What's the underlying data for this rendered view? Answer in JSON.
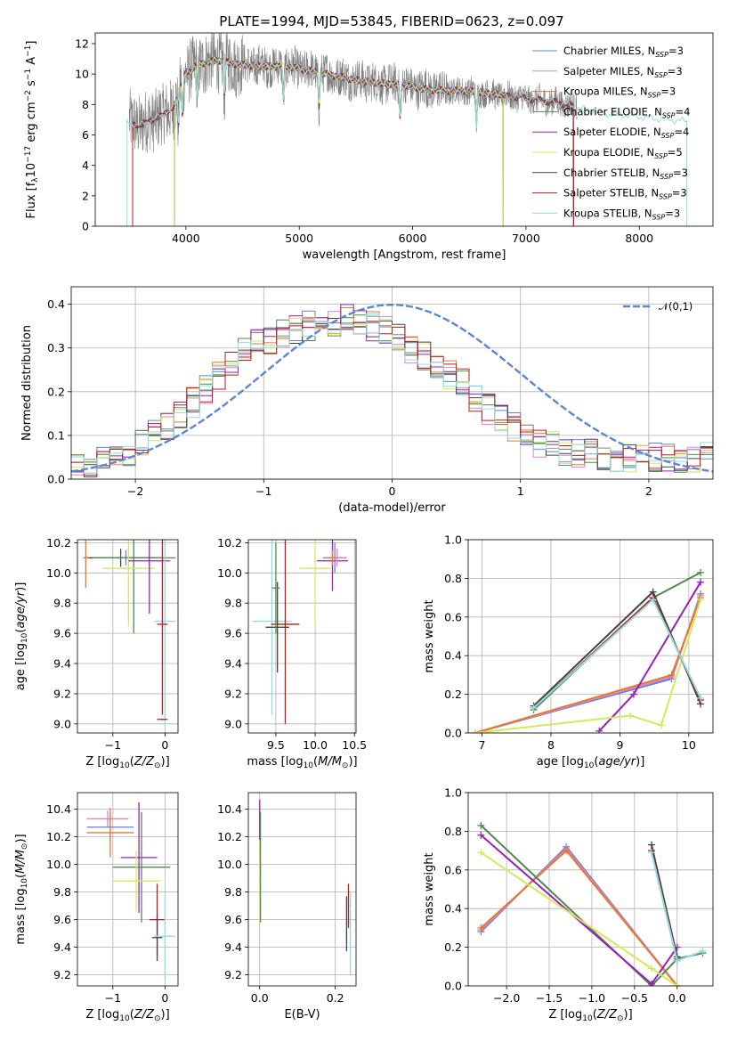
{
  "figure": {
    "title": "PLATE=1994, MJD=53845, FIBERID=0623, z=0.097"
  },
  "series_names": [
    "Chabrier MILES, N_SSP=3",
    "Salpeter MILES, N_SSP=3",
    "Kroupa MILES, N_SSP=3",
    "Chabrier ELODIE, N_SSP=4",
    "Salpeter ELODIE, N_SSP=4",
    "Kroupa ELODIE, N_SSP=5",
    "Chabrier STELIB, N_SSP=3",
    "Salpeter STELIB, N_SSP=3",
    "Kroupa STELIB, N_SSP=3"
  ],
  "series_colors": [
    "#5b86d6",
    "#e381c6",
    "#e8782e",
    "#4f8a4f",
    "#9a1fb8",
    "#d4e85a",
    "#444444",
    "#b81c1c",
    "#8fdde0"
  ],
  "chart_data": [
    {
      "id": "spectrum",
      "type": "line",
      "title": "PLATE=1994, MJD=53845, FIBERID=0623, z=0.097",
      "xlabel": "wavelength [Angstrom, rest frame]",
      "ylabel": "Flux [f_λ 10^-17 erg cm^-2 s^-1 A^-1]",
      "xlim": [
        3200,
        8650
      ],
      "ylim": [
        0,
        12.7
      ],
      "xticks": [
        4000,
        5000,
        6000,
        7000,
        8000
      ],
      "yticks": [
        0,
        2,
        4,
        6,
        8,
        10,
        12
      ],
      "data_color": "#808080",
      "data_range": [
        3500,
        7450
      ],
      "continuum": {
        "x": [
          3460,
          3520,
          3600,
          3700,
          3800,
          3900,
          3960,
          4000,
          4100,
          4200,
          4300,
          4400,
          4500,
          4700,
          4900,
          5100,
          5300,
          5500,
          5700,
          5900,
          6100,
          6300,
          6500,
          6700,
          6900,
          7100,
          7300,
          7500,
          7700,
          7900,
          8100,
          8300,
          8400
        ],
        "y": [
          6.9,
          6.8,
          6.6,
          7.0,
          7.3,
          7.9,
          9.4,
          10.1,
          10.6,
          10.8,
          10.9,
          10.7,
          10.6,
          10.5,
          10.5,
          10.2,
          9.9,
          9.6,
          9.4,
          9.3,
          9.0,
          8.9,
          8.9,
          8.7,
          8.5,
          8.3,
          8.1,
          7.7,
          7.4,
          7.3,
          7.1,
          7.0,
          6.9
        ]
      },
      "absorption_lines": [
        3934,
        3969,
        4102,
        4340,
        4861,
        5175,
        5890,
        6563
      ],
      "model_cutoffs": [
        {
          "series": [
            0,
            1,
            2,
            6,
            7
          ],
          "range": [
            3530,
            7420
          ]
        },
        {
          "series": [
            3,
            4,
            5
          ],
          "range": [
            3900,
            6800
          ]
        },
        {
          "series": [
            8
          ],
          "range": [
            3480,
            8420
          ]
        }
      ],
      "legend": {
        "position": "upper right"
      }
    },
    {
      "id": "residuals",
      "type": "step",
      "xlabel": "(data-model)/error",
      "ylabel": "Normed distribution",
      "xlim": [
        -2.5,
        2.5
      ],
      "ylim": [
        0,
        0.44
      ],
      "xticks": [
        -2,
        -1,
        0,
        1,
        2
      ],
      "yticks": [
        0.0,
        0.1,
        0.2,
        0.3,
        0.4
      ],
      "bin_width": 0.1,
      "grid": true,
      "reference_curve": {
        "name": "𝒩(0,1)",
        "mu": 0,
        "sigma": 1,
        "color": "#5b86d6",
        "dash": true
      },
      "envelope": [
        0.025,
        0.03,
        0.035,
        0.04,
        0.045,
        0.05,
        0.055,
        0.06,
        0.065,
        0.07,
        0.08,
        0.09,
        0.1,
        0.11,
        0.12,
        0.13,
        0.145,
        0.16,
        0.175,
        0.19,
        0.205,
        0.22,
        0.235,
        0.25,
        0.265,
        0.28,
        0.295,
        0.305,
        0.31,
        0.315,
        0.32,
        0.325,
        0.33,
        0.335,
        0.34,
        0.345,
        0.35,
        0.355,
        0.36,
        0.36,
        0.36,
        0.365,
        0.37,
        0.365,
        0.36,
        0.355,
        0.35,
        0.345,
        0.34,
        0.335,
        0.33,
        0.32,
        0.31,
        0.3,
        0.29,
        0.28,
        0.27,
        0.26,
        0.25,
        0.24,
        0.23,
        0.22,
        0.205,
        0.19,
        0.175,
        0.16,
        0.15,
        0.14,
        0.13,
        0.12,
        0.11,
        0.1,
        0.09,
        0.085,
        0.08,
        0.075,
        0.07,
        0.065,
        0.065,
        0.06,
        0.06,
        0.06,
        0.055,
        0.055,
        0.055,
        0.05,
        0.05,
        0.05,
        0.05,
        0.05,
        0.05,
        0.05,
        0.05,
        0.05,
        0.05,
        0.05,
        0.05,
        0.05,
        0.05,
        0.05
      ],
      "legend": {
        "position": "upper right"
      }
    },
    {
      "id": "age-vs-Z",
      "type": "errorbar",
      "xlabel": "Z [log10(Z/Z_sun)]",
      "ylabel": "age [log10(age/yr)]",
      "xlim": [
        -1.68,
        0.25
      ],
      "ylim": [
        8.94,
        10.22
      ],
      "xticks": [
        -1,
        0
      ],
      "yticks": [
        9.0,
        9.2,
        9.4,
        9.6,
        9.8,
        10.0,
        10.2
      ],
      "grid": true,
      "points": [
        {
          "s": 0,
          "x": -0.75,
          "xerr": 0.75,
          "y": 10.1,
          "yerr": 0.05
        },
        {
          "s": 6,
          "x": -0.85,
          "xerr": 0.7,
          "y": 10.1,
          "yerr": 0.06
        },
        {
          "s": 3,
          "x": -0.6,
          "xerr": 0.8,
          "y": 10.1,
          "yerr": 0.5
        },
        {
          "s": 5,
          "x": -0.7,
          "xerr": 0.5,
          "y": 10.03,
          "yerr": 0.38
        },
        {
          "s": 4,
          "x": -0.3,
          "xerr": 0.4,
          "y": 10.08,
          "yerr": 0.35
        },
        {
          "s": 8,
          "x": 0.0,
          "xerr": 0.2,
          "y": 9.68,
          "yerr": 0.7
        },
        {
          "s": 7,
          "x": -0.05,
          "xerr": 0.1,
          "y": 9.66,
          "yerr": 0.6
        },
        {
          "s": 2,
          "x": -1.52,
          "xerr": 0.05,
          "y": 10.1,
          "yerr": 0.2
        },
        {
          "s": 7,
          "x": -0.05,
          "xerr": 0.1,
          "y": 9.03,
          "yerr": 0.0
        }
      ]
    },
    {
      "id": "age-vs-mass",
      "type": "errorbar",
      "xlabel": "mass [log10(M/M_sun)]",
      "ylabel": "",
      "xlim": [
        9.15,
        10.52
      ],
      "ylim": [
        8.94,
        10.22
      ],
      "xticks": [
        9.5,
        10.0,
        10.5
      ],
      "yticks": [
        9.0,
        9.2,
        9.4,
        9.6,
        9.8,
        10.0,
        10.2
      ],
      "grid": true,
      "points": [
        {
          "s": 8,
          "x": 9.45,
          "xerr": 0.25,
          "y": 9.68,
          "yerr": 0.62
        },
        {
          "s": 7,
          "x": 9.62,
          "xerr": 0.18,
          "y": 9.66,
          "yerr": 0.66
        },
        {
          "s": 6,
          "x": 9.52,
          "xerr": 0.15,
          "y": 9.64,
          "yerr": 0.3
        },
        {
          "s": 3,
          "x": 9.5,
          "xerr": 0.05,
          "y": 9.9,
          "yerr": 0.3
        },
        {
          "s": 5,
          "x": 10.0,
          "xerr": 0.2,
          "y": 10.03,
          "yerr": 0.38
        },
        {
          "s": 4,
          "x": 10.22,
          "xerr": 0.2,
          "y": 10.08,
          "yerr": 0.2
        },
        {
          "s": 0,
          "x": 10.25,
          "xerr": 0.15,
          "y": 10.1,
          "yerr": 0.1
        },
        {
          "s": 1,
          "x": 10.28,
          "xerr": 0.1,
          "y": 10.1,
          "yerr": 0.06
        },
        {
          "s": 2,
          "x": 10.22,
          "xerr": 0.08,
          "y": 10.1,
          "yerr": 0.05
        }
      ]
    },
    {
      "id": "mass-weight-vs-age",
      "type": "line",
      "xlabel": "age [log10(age/yr)]",
      "ylabel": "mass weight",
      "xlim": [
        6.8,
        10.35
      ],
      "ylim": [
        0,
        1.0
      ],
      "xticks": [
        7,
        8,
        9,
        10
      ],
      "yticks": [
        0.0,
        0.2,
        0.4,
        0.6,
        0.8,
        1.0
      ],
      "grid": true,
      "series": [
        {
          "s": 0,
          "x": [
            6.9,
            9.75,
            10.17
          ],
          "y": [
            0.0,
            0.28,
            0.72
          ]
        },
        {
          "s": 1,
          "x": [
            6.9,
            9.75,
            10.17
          ],
          "y": [
            0.0,
            0.29,
            0.71
          ]
        },
        {
          "s": 2,
          "x": [
            6.9,
            9.75,
            10.17
          ],
          "y": [
            0.0,
            0.3,
            0.7
          ]
        },
        {
          "s": 3,
          "x": [
            7.75,
            9.48,
            10.17
          ],
          "y": [
            0.12,
            0.7,
            0.83
          ]
        },
        {
          "s": 4,
          "x": [
            8.7,
            9.2,
            10.17
          ],
          "y": [
            0.01,
            0.2,
            0.78
          ]
        },
        {
          "s": 5,
          "x": [
            6.9,
            9.15,
            9.6,
            10.17
          ],
          "y": [
            0.0,
            0.09,
            0.04,
            0.69
          ]
        },
        {
          "s": 6,
          "x": [
            7.75,
            9.48,
            10.17
          ],
          "y": [
            0.14,
            0.73,
            0.15
          ]
        },
        {
          "s": 7,
          "x": [
            7.75,
            9.48,
            10.17
          ],
          "y": [
            0.13,
            0.7,
            0.17
          ]
        },
        {
          "s": 8,
          "x": [
            7.75,
            9.48,
            10.17
          ],
          "y": [
            0.13,
            0.69,
            0.18
          ]
        }
      ]
    },
    {
      "id": "mass-vs-Z",
      "type": "errorbar",
      "xlabel": "Z [log10(Z/Z_sun)]",
      "ylabel": "mass [log10(M/M_sun)]",
      "xlim": [
        -1.68,
        0.25
      ],
      "ylim": [
        9.12,
        10.52
      ],
      "xticks": [
        -1,
        0
      ],
      "yticks": [
        9.2,
        9.4,
        9.6,
        9.8,
        10.0,
        10.2,
        10.4
      ],
      "grid": true,
      "points": [
        {
          "s": 1,
          "x": -1.1,
          "xerr": 0.4,
          "y": 10.33,
          "yerr": 0.06
        },
        {
          "s": 0,
          "x": -1.05,
          "xerr": 0.45,
          "y": 10.27,
          "yerr": 0.1
        },
        {
          "s": 2,
          "x": -1.05,
          "xerr": 0.45,
          "y": 10.23,
          "yerr": 0.18
        },
        {
          "s": 4,
          "x": -0.5,
          "xerr": 0.35,
          "y": 10.05,
          "yerr": 0.4
        },
        {
          "s": 3,
          "x": -0.45,
          "xerr": 0.55,
          "y": 9.98,
          "yerr": 0.4
        },
        {
          "s": 5,
          "x": -0.55,
          "xerr": 0.45,
          "y": 9.88,
          "yerr": 0.22
        },
        {
          "s": 7,
          "x": -0.15,
          "xerr": 0.15,
          "y": 9.6,
          "yerr": 0.26
        },
        {
          "s": 6,
          "x": -0.15,
          "xerr": 0.1,
          "y": 9.47,
          "yerr": 0.17
        },
        {
          "s": 8,
          "x": 0.0,
          "xerr": 0.2,
          "y": 9.48,
          "yerr": 0.3
        }
      ]
    },
    {
      "id": "mass-vs-EBV",
      "type": "errorbar",
      "xlabel": "E(B-V)",
      "ylabel": "",
      "xlim": [
        -0.03,
        0.255
      ],
      "ylim": [
        9.12,
        10.52
      ],
      "xticks": [
        0.0,
        0.2
      ],
      "yticks": [
        9.2,
        9.4,
        9.6,
        9.8,
        10.0,
        10.2,
        10.4
      ],
      "grid": true,
      "points": [
        {
          "s": 4,
          "x": 0.0,
          "xerr": 0.0,
          "y": 10.25,
          "yerr": 0.22
        },
        {
          "s": 5,
          "x": 0.0,
          "xerr": 0.0,
          "y": 9.88,
          "yerr": 0.3
        },
        {
          "s": 3,
          "x": 0.002,
          "xerr": 0.0,
          "y": 9.98,
          "yerr": 0.4
        },
        {
          "s": 6,
          "x": 0.23,
          "xerr": 0.0,
          "y": 9.57,
          "yerr": 0.2
        },
        {
          "s": 7,
          "x": 0.235,
          "xerr": 0.0,
          "y": 9.7,
          "yerr": 0.16
        },
        {
          "s": 8,
          "x": 0.24,
          "xerr": 0.0,
          "y": 9.5,
          "yerr": 0.3
        }
      ]
    },
    {
      "id": "mass-weight-vs-Z",
      "type": "line",
      "xlabel": "Z [log10(Z/Z_sun)]",
      "ylabel": "mass weight",
      "xlim": [
        -2.45,
        0.42
      ],
      "ylim": [
        0,
        1.0
      ],
      "xticks": [
        -2.0,
        -1.5,
        -1.0,
        -0.5,
        0.0
      ],
      "yticks": [
        0.0,
        0.2,
        0.4,
        0.6,
        0.8,
        1.0
      ],
      "grid": true,
      "series": [
        {
          "s": 0,
          "x": [
            -2.3,
            -1.3,
            0.0
          ],
          "y": [
            0.28,
            0.72,
            0.0
          ]
        },
        {
          "s": 1,
          "x": [
            -2.3,
            -1.3,
            0.0
          ],
          "y": [
            0.29,
            0.71,
            0.0
          ]
        },
        {
          "s": 2,
          "x": [
            -2.3,
            -1.3,
            0.0
          ],
          "y": [
            0.3,
            0.7,
            0.0
          ]
        },
        {
          "s": 3,
          "x": [
            -2.3,
            -0.3,
            0.0,
            0.3
          ],
          "y": [
            0.83,
            0.0,
            0.14,
            0.17
          ]
        },
        {
          "s": 4,
          "x": [
            -2.3,
            -0.3,
            0.0
          ],
          "y": [
            0.78,
            0.01,
            0.2
          ]
        },
        {
          "s": 5,
          "x": [
            -2.3,
            -0.3,
            0.0
          ],
          "y": [
            0.69,
            0.09,
            0.0
          ]
        },
        {
          "s": 6,
          "x": [
            -0.3,
            0.0
          ],
          "y": [
            0.73,
            0.15
          ]
        },
        {
          "s": 7,
          "x": [
            -0.3,
            0.0
          ],
          "y": [
            0.7,
            0.13
          ]
        },
        {
          "s": 8,
          "x": [
            -0.3,
            0.0,
            0.3
          ],
          "y": [
            0.69,
            0.13,
            0.18
          ]
        }
      ]
    }
  ]
}
